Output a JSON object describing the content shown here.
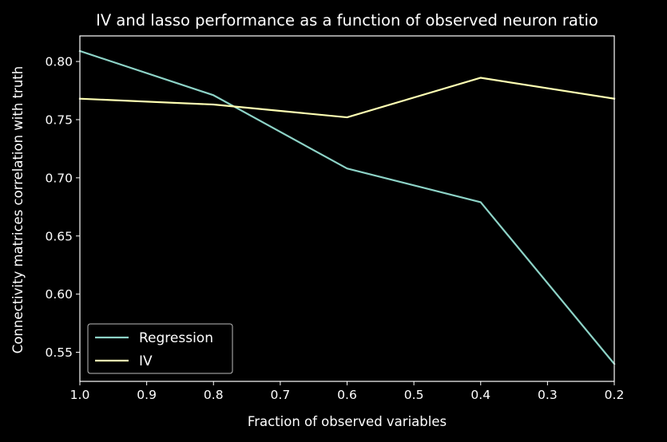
{
  "chart_data": {
    "type": "line",
    "title": "IV and lasso performance as a function of observed neuron ratio",
    "xlabel": "Fraction of observed variables",
    "ylabel": "Connectivity matrices correlation with truth",
    "x": [
      1.0,
      0.8,
      0.6,
      0.4,
      0.2
    ],
    "xlim": [
      1.0,
      0.2
    ],
    "x_inverted": true,
    "ylim": [
      0.525,
      0.822
    ],
    "xticks": [
      1.0,
      0.9,
      0.8,
      0.7,
      0.6,
      0.5,
      0.4,
      0.3,
      0.2
    ],
    "xtick_labels": [
      "1.0",
      "0.9",
      "0.8",
      "0.7",
      "0.6",
      "0.5",
      "0.4",
      "0.3",
      "0.2"
    ],
    "yticks": [
      0.55,
      0.6,
      0.65,
      0.7,
      0.75,
      0.8
    ],
    "ytick_labels": [
      "0.55",
      "0.60",
      "0.65",
      "0.70",
      "0.75",
      "0.80"
    ],
    "grid": false,
    "legend_position": "lower-left",
    "series": [
      {
        "name": "Regression",
        "color": "#8dd3c7",
        "values": [
          0.809,
          0.771,
          0.708,
          0.679,
          0.54
        ]
      },
      {
        "name": "IV",
        "color": "#feffb3",
        "values": [
          0.768,
          0.763,
          0.752,
          0.786,
          0.768
        ]
      }
    ],
    "background": "#000000",
    "axis_color": "#ffffff"
  }
}
